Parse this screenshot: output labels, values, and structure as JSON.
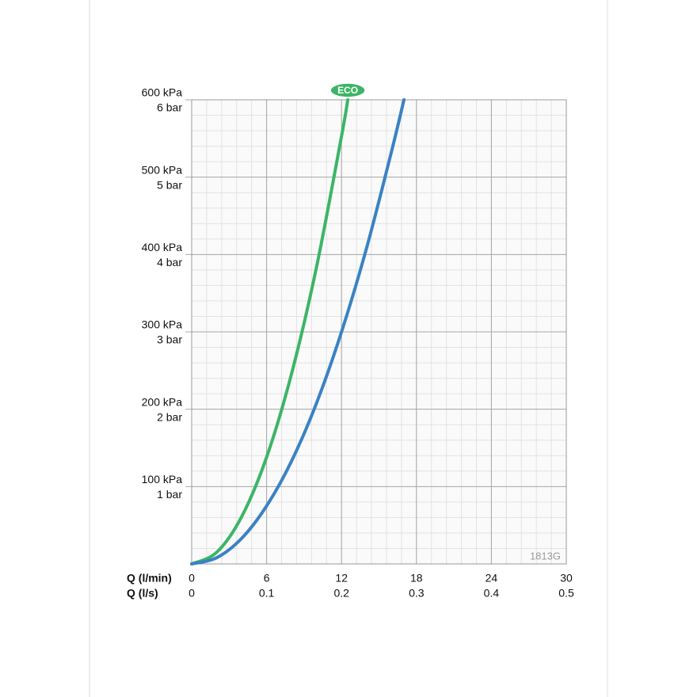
{
  "chart_data": {
    "type": "line",
    "xlim": [
      0,
      30
    ],
    "xticks": [
      0,
      6,
      12,
      18,
      24,
      30
    ],
    "xlabel": "Q (l/min)",
    "x2lim": [
      0,
      0.5
    ],
    "x2ticks": [
      0,
      0.1,
      0.2,
      0.3,
      0.4,
      0.5
    ],
    "x2label": "Q (l/s)",
    "ylim": [
      0,
      600
    ],
    "yticks": [
      {
        "value": 100,
        "label": "100 kPa"
      },
      {
        "value": 200,
        "label": "200 kPa"
      },
      {
        "value": 300,
        "label": "300 kPa"
      },
      {
        "value": 400,
        "label": "400 kPa"
      },
      {
        "value": 500,
        "label": "500 kPa"
      },
      {
        "value": 600,
        "label": "600 kPa"
      }
    ],
    "y2lim": [
      0,
      6
    ],
    "y2ticks": [
      {
        "value": 1,
        "label": "1 bar"
      },
      {
        "value": 2,
        "label": "2 bar"
      },
      {
        "value": 3,
        "label": "3 bar"
      },
      {
        "value": 4,
        "label": "4 bar"
      },
      {
        "value": 5,
        "label": "5 bar"
      },
      {
        "value": 6,
        "label": "6 bar"
      }
    ],
    "grid": true,
    "series": [
      {
        "name": "ECO",
        "color": "#3cb566",
        "x": [
          0,
          2,
          4,
          6,
          8,
          10,
          12,
          12.5
        ],
        "values": [
          0,
          15,
          61,
          138,
          246,
          384,
          553,
          600
        ]
      },
      {
        "color": "#3a82c4",
        "x": [
          0,
          2,
          4,
          6,
          8,
          10,
          12,
          14,
          16,
          17
        ],
        "values": [
          0,
          8,
          33,
          75,
          133,
          208,
          300,
          408,
          533,
          600
        ]
      }
    ],
    "annotation": "1813G"
  }
}
